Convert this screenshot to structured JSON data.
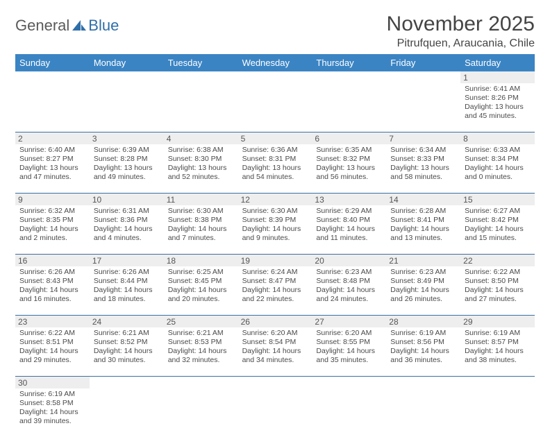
{
  "logo": {
    "part1": "General",
    "part2": "Blue"
  },
  "title": "November 2025",
  "location": "Pitrufquen, Araucania, Chile",
  "colors": {
    "header_bg": "#3b84c4",
    "header_text": "#ffffff",
    "daynum_bg": "#eeeeee",
    "text": "#4a4a4a",
    "rule": "#3b6fa0"
  },
  "day_labels": [
    "Sunday",
    "Monday",
    "Tuesday",
    "Wednesday",
    "Thursday",
    "Friday",
    "Saturday"
  ],
  "weeks": [
    [
      null,
      null,
      null,
      null,
      null,
      null,
      {
        "n": "1",
        "sr": "Sunrise: 6:41 AM",
        "ss": "Sunset: 8:26 PM",
        "d1": "Daylight: 13 hours",
        "d2": "and 45 minutes."
      }
    ],
    [
      {
        "n": "2",
        "sr": "Sunrise: 6:40 AM",
        "ss": "Sunset: 8:27 PM",
        "d1": "Daylight: 13 hours",
        "d2": "and 47 minutes."
      },
      {
        "n": "3",
        "sr": "Sunrise: 6:39 AM",
        "ss": "Sunset: 8:28 PM",
        "d1": "Daylight: 13 hours",
        "d2": "and 49 minutes."
      },
      {
        "n": "4",
        "sr": "Sunrise: 6:38 AM",
        "ss": "Sunset: 8:30 PM",
        "d1": "Daylight: 13 hours",
        "d2": "and 52 minutes."
      },
      {
        "n": "5",
        "sr": "Sunrise: 6:36 AM",
        "ss": "Sunset: 8:31 PM",
        "d1": "Daylight: 13 hours",
        "d2": "and 54 minutes."
      },
      {
        "n": "6",
        "sr": "Sunrise: 6:35 AM",
        "ss": "Sunset: 8:32 PM",
        "d1": "Daylight: 13 hours",
        "d2": "and 56 minutes."
      },
      {
        "n": "7",
        "sr": "Sunrise: 6:34 AM",
        "ss": "Sunset: 8:33 PM",
        "d1": "Daylight: 13 hours",
        "d2": "and 58 minutes."
      },
      {
        "n": "8",
        "sr": "Sunrise: 6:33 AM",
        "ss": "Sunset: 8:34 PM",
        "d1": "Daylight: 14 hours",
        "d2": "and 0 minutes."
      }
    ],
    [
      {
        "n": "9",
        "sr": "Sunrise: 6:32 AM",
        "ss": "Sunset: 8:35 PM",
        "d1": "Daylight: 14 hours",
        "d2": "and 2 minutes."
      },
      {
        "n": "10",
        "sr": "Sunrise: 6:31 AM",
        "ss": "Sunset: 8:36 PM",
        "d1": "Daylight: 14 hours",
        "d2": "and 4 minutes."
      },
      {
        "n": "11",
        "sr": "Sunrise: 6:30 AM",
        "ss": "Sunset: 8:38 PM",
        "d1": "Daylight: 14 hours",
        "d2": "and 7 minutes."
      },
      {
        "n": "12",
        "sr": "Sunrise: 6:30 AM",
        "ss": "Sunset: 8:39 PM",
        "d1": "Daylight: 14 hours",
        "d2": "and 9 minutes."
      },
      {
        "n": "13",
        "sr": "Sunrise: 6:29 AM",
        "ss": "Sunset: 8:40 PM",
        "d1": "Daylight: 14 hours",
        "d2": "and 11 minutes."
      },
      {
        "n": "14",
        "sr": "Sunrise: 6:28 AM",
        "ss": "Sunset: 8:41 PM",
        "d1": "Daylight: 14 hours",
        "d2": "and 13 minutes."
      },
      {
        "n": "15",
        "sr": "Sunrise: 6:27 AM",
        "ss": "Sunset: 8:42 PM",
        "d1": "Daylight: 14 hours",
        "d2": "and 15 minutes."
      }
    ],
    [
      {
        "n": "16",
        "sr": "Sunrise: 6:26 AM",
        "ss": "Sunset: 8:43 PM",
        "d1": "Daylight: 14 hours",
        "d2": "and 16 minutes."
      },
      {
        "n": "17",
        "sr": "Sunrise: 6:26 AM",
        "ss": "Sunset: 8:44 PM",
        "d1": "Daylight: 14 hours",
        "d2": "and 18 minutes."
      },
      {
        "n": "18",
        "sr": "Sunrise: 6:25 AM",
        "ss": "Sunset: 8:45 PM",
        "d1": "Daylight: 14 hours",
        "d2": "and 20 minutes."
      },
      {
        "n": "19",
        "sr": "Sunrise: 6:24 AM",
        "ss": "Sunset: 8:47 PM",
        "d1": "Daylight: 14 hours",
        "d2": "and 22 minutes."
      },
      {
        "n": "20",
        "sr": "Sunrise: 6:23 AM",
        "ss": "Sunset: 8:48 PM",
        "d1": "Daylight: 14 hours",
        "d2": "and 24 minutes."
      },
      {
        "n": "21",
        "sr": "Sunrise: 6:23 AM",
        "ss": "Sunset: 8:49 PM",
        "d1": "Daylight: 14 hours",
        "d2": "and 26 minutes."
      },
      {
        "n": "22",
        "sr": "Sunrise: 6:22 AM",
        "ss": "Sunset: 8:50 PM",
        "d1": "Daylight: 14 hours",
        "d2": "and 27 minutes."
      }
    ],
    [
      {
        "n": "23",
        "sr": "Sunrise: 6:22 AM",
        "ss": "Sunset: 8:51 PM",
        "d1": "Daylight: 14 hours",
        "d2": "and 29 minutes."
      },
      {
        "n": "24",
        "sr": "Sunrise: 6:21 AM",
        "ss": "Sunset: 8:52 PM",
        "d1": "Daylight: 14 hours",
        "d2": "and 30 minutes."
      },
      {
        "n": "25",
        "sr": "Sunrise: 6:21 AM",
        "ss": "Sunset: 8:53 PM",
        "d1": "Daylight: 14 hours",
        "d2": "and 32 minutes."
      },
      {
        "n": "26",
        "sr": "Sunrise: 6:20 AM",
        "ss": "Sunset: 8:54 PM",
        "d1": "Daylight: 14 hours",
        "d2": "and 34 minutes."
      },
      {
        "n": "27",
        "sr": "Sunrise: 6:20 AM",
        "ss": "Sunset: 8:55 PM",
        "d1": "Daylight: 14 hours",
        "d2": "and 35 minutes."
      },
      {
        "n": "28",
        "sr": "Sunrise: 6:19 AM",
        "ss": "Sunset: 8:56 PM",
        "d1": "Daylight: 14 hours",
        "d2": "and 36 minutes."
      },
      {
        "n": "29",
        "sr": "Sunrise: 6:19 AM",
        "ss": "Sunset: 8:57 PM",
        "d1": "Daylight: 14 hours",
        "d2": "and 38 minutes."
      }
    ],
    [
      {
        "n": "30",
        "sr": "Sunrise: 6:19 AM",
        "ss": "Sunset: 8:58 PM",
        "d1": "Daylight: 14 hours",
        "d2": "and 39 minutes."
      },
      null,
      null,
      null,
      null,
      null,
      null
    ]
  ]
}
